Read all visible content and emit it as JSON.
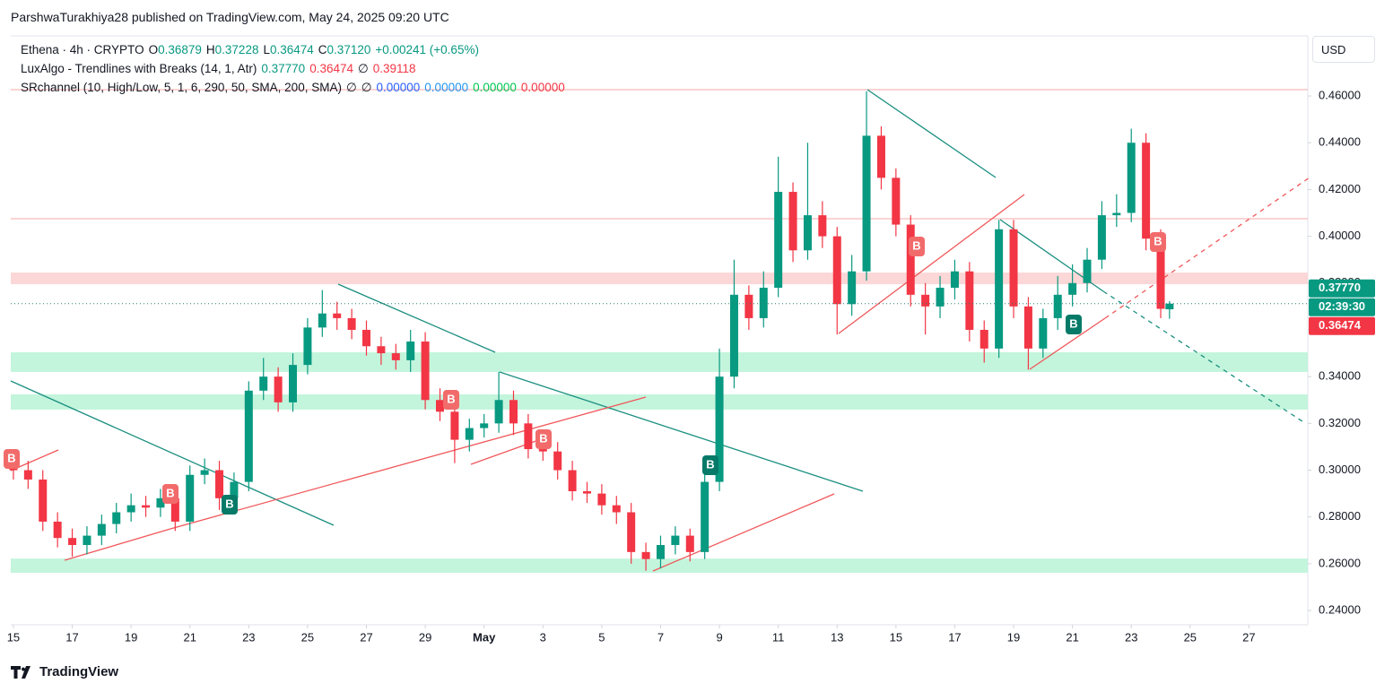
{
  "header": {
    "title": "ParshwaTurakhiya28 published on TradingView.com, May 24, 2025 09:20 UTC",
    "logo": "TradingView",
    "currency": "USD"
  },
  "legend": [
    [
      {
        "text": "Ethena · 4h · CRYPTO"
      },
      {
        "text": "O"
      },
      {
        "text": "0.36879",
        "color": "#089981"
      },
      {
        "text": "H"
      },
      {
        "text": "0.37228",
        "color": "#089981"
      },
      {
        "text": "L"
      },
      {
        "text": "0.36474",
        "color": "#089981"
      },
      {
        "text": "C"
      },
      {
        "text": "0.37120",
        "color": "#089981"
      },
      {
        "text": "+0.00241 (+0.65%)",
        "color": "#089981"
      }
    ],
    [
      {
        "text": "LuxAlgo - Trendlines with Breaks (14, 1, Atr)"
      },
      {
        "text": "0.37770",
        "color": "#089981"
      },
      {
        "text": "0.36474",
        "color": "#f23645"
      },
      {
        "text": "∅"
      },
      {
        "text": "0.39118",
        "color": "#f23645"
      }
    ],
    [
      {
        "text": "SRchannel (10, High/Low, 5, 1, 6, 290, 50, SMA, 200, SMA)"
      },
      {
        "text": "∅"
      },
      {
        "text": "∅"
      },
      {
        "text": "0.00000",
        "color": "#2962ff"
      },
      {
        "text": "0.00000",
        "color": "#2196f3"
      },
      {
        "text": "0.00000",
        "color": "#00c853"
      },
      {
        "text": "0.00000",
        "color": "#f23645"
      }
    ]
  ],
  "signals": [
    {
      "text": "B"
    },
    {
      "text": "B"
    },
    {
      "text": "B"
    },
    {
      "text": "B"
    },
    {
      "text": "B"
    },
    {
      "text": "B"
    },
    {
      "text": "B"
    },
    {
      "text": "B"
    },
    {
      "text": "B"
    }
  ],
  "chart_data": {
    "type": "candlestick",
    "up_color": "#089981",
    "down_color": "#f23645",
    "x": [
      0,
      0.5,
      1,
      1.5,
      2,
      2.5,
      3,
      3.5,
      4,
      4.5,
      5,
      5.5,
      6,
      6.5,
      7,
      7.5,
      8,
      8.5,
      9,
      9.5,
      10,
      10.5,
      11,
      11.5,
      12,
      12.5,
      13,
      13.5,
      14,
      14.5,
      15,
      15.5,
      16,
      16.5,
      17,
      17.5,
      18,
      18.5,
      19,
      19.5,
      20,
      20.5,
      21,
      21.5,
      22,
      22.5,
      23,
      23.5,
      24,
      24.5,
      25,
      25.5,
      26,
      26.5,
      27,
      27.5,
      28,
      28.5,
      29,
      29.5,
      30,
      30.5,
      31,
      31.5,
      32,
      32.5,
      33,
      33.5,
      34,
      34.5,
      35,
      35.5,
      36,
      36.5,
      37,
      37.5,
      38,
      38.5,
      39,
      39.3
    ],
    "open": [
      0.305,
      0.3,
      0.296,
      0.278,
      0.271,
      0.268,
      0.272,
      0.277,
      0.282,
      0.285,
      0.284,
      0.288,
      0.278,
      0.298,
      0.3,
      0.288,
      0.295,
      0.334,
      0.34,
      0.329,
      0.345,
      0.361,
      0.367,
      0.365,
      0.36,
      0.353,
      0.35,
      0.347,
      0.355,
      0.33,
      0.325,
      0.313,
      0.318,
      0.32,
      0.33,
      0.32,
      0.309,
      0.308,
      0.3,
      0.291,
      0.29,
      0.285,
      0.282,
      0.265,
      0.262,
      0.268,
      0.272,
      0.265,
      0.295,
      0.34,
      0.375,
      0.365,
      0.378,
      0.419,
      0.394,
      0.409,
      0.4,
      0.371,
      0.385,
      0.443,
      0.425,
      0.405,
      0.375,
      0.37,
      0.378,
      0.385,
      0.36,
      0.352,
      0.403,
      0.37,
      0.352,
      0.365,
      0.375,
      0.38,
      0.39,
      0.409,
      0.41,
      0.44,
      0.399,
      0.36879
    ],
    "high": [
      0.309,
      0.304,
      0.3,
      0.282,
      0.275,
      0.276,
      0.281,
      0.286,
      0.29,
      0.289,
      0.292,
      0.292,
      0.302,
      0.305,
      0.304,
      0.299,
      0.338,
      0.348,
      0.344,
      0.35,
      0.365,
      0.377,
      0.372,
      0.369,
      0.364,
      0.357,
      0.354,
      0.36,
      0.359,
      0.335,
      0.329,
      0.322,
      0.324,
      0.342,
      0.334,
      0.324,
      0.314,
      0.312,
      0.304,
      0.295,
      0.294,
      0.289,
      0.286,
      0.269,
      0.272,
      0.276,
      0.275,
      0.299,
      0.352,
      0.39,
      0.379,
      0.385,
      0.434,
      0.423,
      0.44,
      0.415,
      0.404,
      0.392,
      0.462,
      0.447,
      0.429,
      0.409,
      0.38,
      0.383,
      0.39,
      0.389,
      0.364,
      0.407,
      0.407,
      0.374,
      0.369,
      0.383,
      0.388,
      0.395,
      0.415,
      0.418,
      0.446,
      0.444,
      0.403,
      0.37228
    ],
    "low": [
      0.296,
      0.292,
      0.274,
      0.267,
      0.263,
      0.264,
      0.268,
      0.273,
      0.278,
      0.28,
      0.28,
      0.274,
      0.274,
      0.294,
      0.283,
      0.282,
      0.291,
      0.33,
      0.325,
      0.325,
      0.341,
      0.357,
      0.36,
      0.356,
      0.349,
      0.345,
      0.343,
      0.342,
      0.326,
      0.321,
      0.303,
      0.308,
      0.314,
      0.316,
      0.315,
      0.305,
      0.304,
      0.296,
      0.287,
      0.286,
      0.281,
      0.277,
      0.26,
      0.257,
      0.258,
      0.264,
      0.261,
      0.262,
      0.291,
      0.335,
      0.36,
      0.361,
      0.374,
      0.389,
      0.39,
      0.395,
      0.358,
      0.366,
      0.381,
      0.42,
      0.4,
      0.37,
      0.358,
      0.365,
      0.373,
      0.355,
      0.346,
      0.348,
      0.365,
      0.343,
      0.348,
      0.36,
      0.37,
      0.376,
      0.386,
      0.404,
      0.406,
      0.394,
      0.365,
      0.36474
    ],
    "close": [
      0.3,
      0.296,
      0.278,
      0.271,
      0.268,
      0.272,
      0.277,
      0.282,
      0.285,
      0.284,
      0.288,
      0.278,
      0.298,
      0.3,
      0.288,
      0.295,
      0.334,
      0.34,
      0.329,
      0.345,
      0.361,
      0.367,
      0.365,
      0.36,
      0.353,
      0.35,
      0.347,
      0.355,
      0.33,
      0.325,
      0.313,
      0.318,
      0.32,
      0.33,
      0.32,
      0.309,
      0.308,
      0.3,
      0.291,
      0.29,
      0.285,
      0.282,
      0.265,
      0.262,
      0.268,
      0.272,
      0.265,
      0.295,
      0.34,
      0.375,
      0.365,
      0.378,
      0.419,
      0.394,
      0.409,
      0.4,
      0.371,
      0.385,
      0.443,
      0.425,
      0.405,
      0.375,
      0.37,
      0.378,
      0.385,
      0.36,
      0.352,
      0.403,
      0.37,
      0.352,
      0.365,
      0.375,
      0.38,
      0.39,
      0.409,
      0.41,
      0.44,
      0.399,
      0.369,
      0.3712
    ],
    "xlim": [
      -0.09,
      44
    ],
    "xticks": [
      {
        "value": 0,
        "label": "15"
      },
      {
        "value": 2,
        "label": "17"
      },
      {
        "value": 4,
        "label": "19"
      },
      {
        "value": 6,
        "label": "21"
      },
      {
        "value": 8,
        "label": "23"
      },
      {
        "value": 10,
        "label": "25"
      },
      {
        "value": 12,
        "label": "27"
      },
      {
        "value": 14,
        "label": "29"
      },
      {
        "value": 16,
        "label": "May"
      },
      {
        "value": 18,
        "label": "3"
      },
      {
        "value": 20,
        "label": "5"
      },
      {
        "value": 22,
        "label": "7"
      },
      {
        "value": 24,
        "label": "9"
      },
      {
        "value": 26,
        "label": "11"
      },
      {
        "value": 28,
        "label": "13"
      },
      {
        "value": 30,
        "label": "15"
      },
      {
        "value": 32,
        "label": "17"
      },
      {
        "value": 34,
        "label": "19"
      },
      {
        "value": 36,
        "label": "21"
      },
      {
        "value": 38,
        "label": "23"
      },
      {
        "value": 40,
        "label": "25"
      },
      {
        "value": 42,
        "label": "27"
      }
    ],
    "ylim": [
      0.2339,
      0.4857
    ],
    "yticks": [
      {
        "value": 0.46,
        "label": "0.46000"
      },
      {
        "value": 0.44,
        "label": "0.44000"
      },
      {
        "value": 0.42,
        "label": "0.42000"
      },
      {
        "value": 0.4,
        "label": "0.40000"
      },
      {
        "value": 0.38,
        "label": "0.38000"
      },
      {
        "value": 0.36,
        "label": "0.36000"
      },
      {
        "value": 0.34,
        "label": "0.34000"
      },
      {
        "value": 0.32,
        "label": "0.32000"
      },
      {
        "value": 0.3,
        "label": "0.30000"
      },
      {
        "value": 0.28,
        "label": "0.28000"
      },
      {
        "value": 0.26,
        "label": "0.26000"
      },
      {
        "value": 0.24,
        "label": "0.24000"
      }
    ],
    "zones": [
      {
        "low": 0.342,
        "high": 0.3504,
        "color": "#b9f3d6"
      },
      {
        "low": 0.3259,
        "high": 0.3324,
        "color": "#b9f3d6"
      },
      {
        "low": 0.2561,
        "high": 0.2622,
        "color": "#b9f3d6"
      },
      {
        "low": 0.3795,
        "high": 0.3845,
        "color": "#fbd0d0"
      }
    ],
    "levels": [
      {
        "value": 0.4627,
        "color": "#f7a8a8"
      },
      {
        "value": 0.4075,
        "color": "#f7a8a8"
      }
    ],
    "price_labels": [
      {
        "value": 0.3777,
        "label": "0.37770",
        "color": "#089981"
      },
      {
        "value": 0.3777,
        "label": "02:39:30",
        "color": "#089981"
      },
      {
        "value": 0.36474,
        "label": "0.36474",
        "color": "#f23645"
      }
    ]
  }
}
